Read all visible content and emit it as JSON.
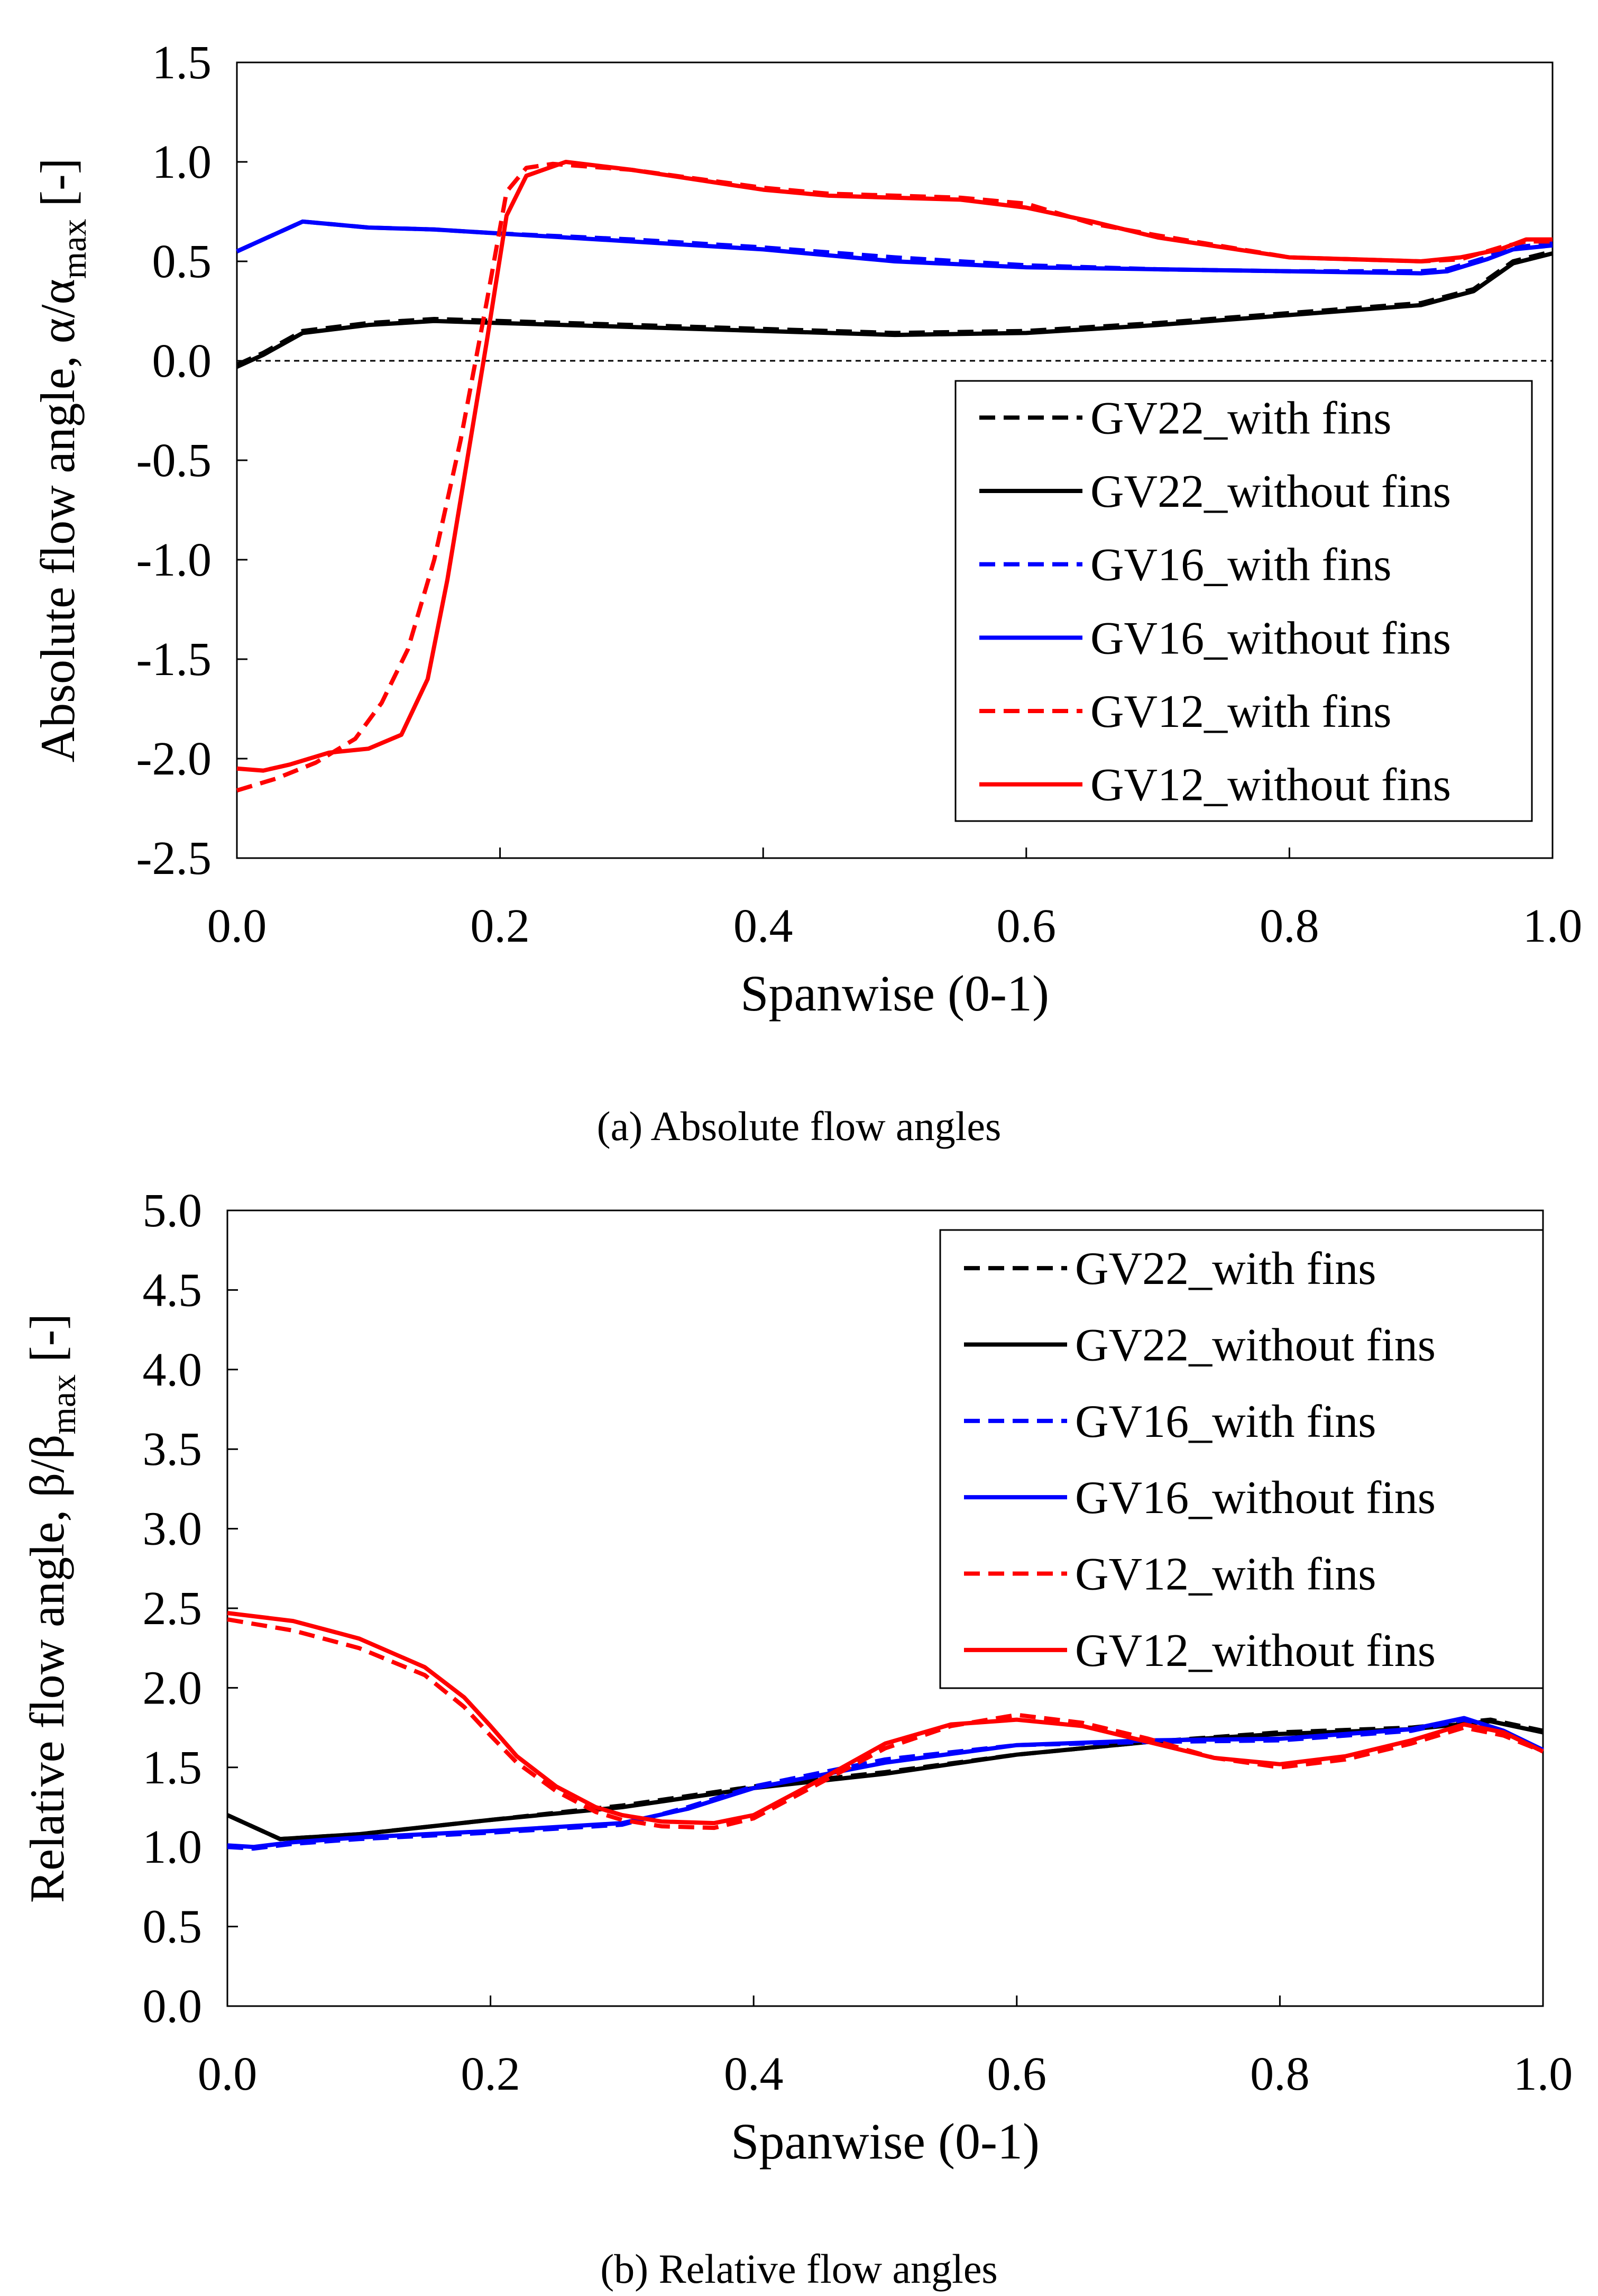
{
  "chart_data": [
    {
      "type": "line",
      "caption": "(a) Absolute flow angles",
      "xlabel": "Spanwise (0-1)",
      "ylabel": {
        "prefix": "Absolute flow angle, α/α",
        "sub": "max",
        "suffix": " [-]"
      },
      "xlim": [
        0,
        1
      ],
      "ylim": [
        -2.5,
        1.5
      ],
      "xticks": [
        "0.0",
        "0.2",
        "0.4",
        "0.6",
        "0.8",
        "1.0"
      ],
      "yticks": [
        "-2.5",
        "-2.0",
        "-1.5",
        "-1.0",
        "-0.5",
        "0.0",
        "0.5",
        "1.0",
        "1.5"
      ],
      "reference_line_y": 0,
      "legend_position": "right",
      "series": [
        {
          "name": "GV22_with fins",
          "color": "#000000",
          "dash": true,
          "x": [
            0.0,
            0.02,
            0.05,
            0.1,
            0.15,
            0.2,
            0.3,
            0.4,
            0.5,
            0.6,
            0.7,
            0.8,
            0.9,
            0.94,
            0.97,
            1.0
          ],
          "y": [
            -0.02,
            0.04,
            0.15,
            0.19,
            0.21,
            0.2,
            0.18,
            0.16,
            0.14,
            0.15,
            0.19,
            0.24,
            0.29,
            0.36,
            0.5,
            0.55
          ]
        },
        {
          "name": "GV22_without fins",
          "color": "#000000",
          "dash": false,
          "x": [
            0.0,
            0.02,
            0.05,
            0.1,
            0.15,
            0.2,
            0.3,
            0.4,
            0.5,
            0.6,
            0.7,
            0.8,
            0.9,
            0.94,
            0.97,
            1.0
          ],
          "y": [
            -0.03,
            0.03,
            0.14,
            0.18,
            0.2,
            0.19,
            0.17,
            0.15,
            0.13,
            0.14,
            0.18,
            0.23,
            0.28,
            0.35,
            0.49,
            0.54
          ]
        },
        {
          "name": "GV16_with fins",
          "color": "#0000ff",
          "dash": true,
          "x": [
            0.0,
            0.05,
            0.1,
            0.15,
            0.2,
            0.3,
            0.4,
            0.5,
            0.6,
            0.7,
            0.8,
            0.9,
            0.92,
            0.95,
            0.97,
            1.0
          ],
          "y": [
            0.55,
            0.7,
            0.67,
            0.66,
            0.64,
            0.61,
            0.57,
            0.52,
            0.48,
            0.46,
            0.45,
            0.45,
            0.46,
            0.52,
            0.57,
            0.59
          ]
        },
        {
          "name": "GV16_without fins",
          "color": "#0000ff",
          "dash": false,
          "x": [
            0.0,
            0.05,
            0.1,
            0.15,
            0.2,
            0.3,
            0.4,
            0.5,
            0.6,
            0.7,
            0.8,
            0.9,
            0.92,
            0.95,
            0.97,
            1.0
          ],
          "y": [
            0.55,
            0.7,
            0.67,
            0.66,
            0.64,
            0.6,
            0.56,
            0.5,
            0.47,
            0.46,
            0.45,
            0.44,
            0.45,
            0.51,
            0.56,
            0.58
          ]
        },
        {
          "name": "GV12_with fins",
          "color": "#ff0000",
          "dash": true,
          "x": [
            0.0,
            0.03,
            0.06,
            0.09,
            0.11,
            0.13,
            0.15,
            0.17,
            0.19,
            0.205,
            0.22,
            0.24,
            0.3,
            0.4,
            0.45,
            0.5,
            0.55,
            0.6,
            0.65,
            0.7,
            0.8,
            0.9,
            0.93,
            0.96,
            0.98,
            1.0
          ],
          "y": [
            -2.16,
            -2.1,
            -2.02,
            -1.9,
            -1.72,
            -1.45,
            -1.0,
            -0.4,
            0.3,
            0.85,
            0.97,
            0.99,
            0.96,
            0.87,
            0.84,
            0.83,
            0.82,
            0.79,
            0.69,
            0.63,
            0.52,
            0.5,
            0.51,
            0.57,
            0.6,
            0.6
          ]
        },
        {
          "name": "GV12_without fins",
          "color": "#ff0000",
          "dash": false,
          "x": [
            0.0,
            0.02,
            0.04,
            0.07,
            0.1,
            0.125,
            0.145,
            0.16,
            0.175,
            0.19,
            0.205,
            0.22,
            0.25,
            0.3,
            0.4,
            0.45,
            0.5,
            0.55,
            0.6,
            0.65,
            0.7,
            0.8,
            0.9,
            0.93,
            0.96,
            0.98,
            1.0
          ],
          "y": [
            -2.05,
            -2.06,
            -2.03,
            -1.97,
            -1.95,
            -1.88,
            -1.6,
            -1.1,
            -0.5,
            0.1,
            0.73,
            0.93,
            1.0,
            0.96,
            0.86,
            0.83,
            0.82,
            0.81,
            0.77,
            0.7,
            0.62,
            0.52,
            0.5,
            0.52,
            0.56,
            0.61,
            0.61
          ]
        }
      ]
    },
    {
      "type": "line",
      "caption": "(b) Relative flow angles",
      "xlabel": "Spanwise (0-1)",
      "ylabel": {
        "prefix": "Relative flow angle, β/β",
        "sub": "max",
        "suffix": " [-]"
      },
      "xlim": [
        0,
        1
      ],
      "ylim": [
        0,
        5
      ],
      "xticks": [
        "0.0",
        "0.2",
        "0.4",
        "0.6",
        "0.8",
        "1.0"
      ],
      "yticks": [
        "0.0",
        "0.5",
        "1.0",
        "1.5",
        "2.0",
        "2.5",
        "3.0",
        "3.5",
        "4.0",
        "4.5",
        "5.0"
      ],
      "legend_position": "top-right",
      "series": [
        {
          "name": "GV22_with fins",
          "color": "#000000",
          "dash": true,
          "x": [
            0.0,
            0.04,
            0.1,
            0.2,
            0.3,
            0.4,
            0.5,
            0.6,
            0.7,
            0.8,
            0.9,
            0.96,
            1.0
          ],
          "y": [
            1.2,
            1.05,
            1.08,
            1.17,
            1.26,
            1.38,
            1.47,
            1.58,
            1.66,
            1.72,
            1.75,
            1.8,
            1.73
          ]
        },
        {
          "name": "GV22_without fins",
          "color": "#000000",
          "dash": false,
          "x": [
            0.0,
            0.04,
            0.1,
            0.2,
            0.3,
            0.4,
            0.5,
            0.6,
            0.7,
            0.8,
            0.9,
            0.96,
            1.0
          ],
          "y": [
            1.2,
            1.05,
            1.08,
            1.17,
            1.25,
            1.37,
            1.46,
            1.58,
            1.66,
            1.71,
            1.74,
            1.79,
            1.72
          ]
        },
        {
          "name": "GV16_with fins",
          "color": "#0000ff",
          "dash": true,
          "x": [
            0.0,
            0.02,
            0.05,
            0.1,
            0.2,
            0.3,
            0.35,
            0.4,
            0.5,
            0.6,
            0.7,
            0.8,
            0.9,
            0.94,
            0.97,
            1.0
          ],
          "y": [
            1.0,
            0.99,
            1.02,
            1.05,
            1.09,
            1.14,
            1.25,
            1.38,
            1.55,
            1.64,
            1.66,
            1.67,
            1.73,
            1.8,
            1.72,
            1.6
          ]
        },
        {
          "name": "GV16_without fins",
          "color": "#0000ff",
          "dash": false,
          "x": [
            0.0,
            0.02,
            0.05,
            0.1,
            0.2,
            0.3,
            0.35,
            0.4,
            0.5,
            0.6,
            0.7,
            0.8,
            0.9,
            0.94,
            0.97,
            1.0
          ],
          "y": [
            1.01,
            1.0,
            1.03,
            1.06,
            1.1,
            1.15,
            1.24,
            1.37,
            1.53,
            1.64,
            1.67,
            1.68,
            1.74,
            1.81,
            1.73,
            1.61
          ]
        },
        {
          "name": "GV12_with fins",
          "color": "#ff0000",
          "dash": true,
          "x": [
            0.0,
            0.05,
            0.1,
            0.15,
            0.18,
            0.2,
            0.22,
            0.25,
            0.28,
            0.3,
            0.33,
            0.37,
            0.4,
            0.45,
            0.5,
            0.55,
            0.6,
            0.65,
            0.7,
            0.75,
            0.8,
            0.85,
            0.9,
            0.94,
            0.97,
            1.0
          ],
          "y": [
            2.43,
            2.36,
            2.25,
            2.08,
            1.88,
            1.7,
            1.53,
            1.35,
            1.22,
            1.17,
            1.13,
            1.12,
            1.18,
            1.4,
            1.62,
            1.76,
            1.83,
            1.78,
            1.68,
            1.56,
            1.5,
            1.55,
            1.65,
            1.75,
            1.7,
            1.6
          ]
        },
        {
          "name": "GV12_without fins",
          "color": "#ff0000",
          "dash": false,
          "x": [
            0.0,
            0.05,
            0.1,
            0.15,
            0.18,
            0.2,
            0.22,
            0.25,
            0.28,
            0.3,
            0.33,
            0.37,
            0.4,
            0.45,
            0.5,
            0.55,
            0.6,
            0.65,
            0.7,
            0.75,
            0.8,
            0.85,
            0.9,
            0.94,
            0.97,
            1.0
          ],
          "y": [
            2.47,
            2.42,
            2.31,
            2.13,
            1.94,
            1.76,
            1.57,
            1.38,
            1.25,
            1.2,
            1.16,
            1.15,
            1.2,
            1.42,
            1.65,
            1.77,
            1.8,
            1.76,
            1.66,
            1.56,
            1.52,
            1.57,
            1.67,
            1.77,
            1.72,
            1.6
          ]
        }
      ]
    }
  ]
}
